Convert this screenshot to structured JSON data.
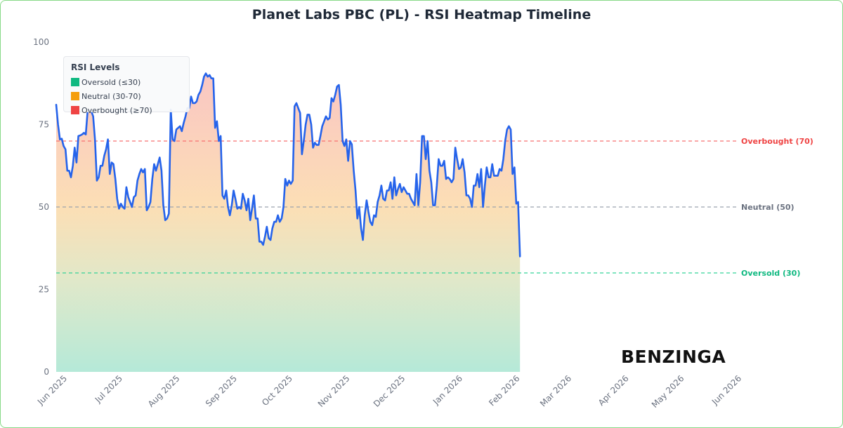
{
  "title": "Planet Labs PBC (PL) - RSI Heatmap Timeline",
  "brand": "BENZINGA",
  "colors": {
    "line": "#2563eb",
    "oversold": "#10b981",
    "neutral": "#f59e0b",
    "overbought": "#ef4444",
    "neutral_line": "#9ca3af"
  },
  "legend": {
    "title": "RSI Levels",
    "items": [
      {
        "label": "Oversold (≤30)",
        "color": "#10b981"
      },
      {
        "label": "Neutral (30-70)",
        "color": "#f59e0b"
      },
      {
        "label": "Overbought (≥70)",
        "color": "#ef4444"
      }
    ]
  },
  "reference_lines": [
    {
      "value": 70,
      "label": "Overbought (70)",
      "color": "#ef4444"
    },
    {
      "value": 50,
      "label": "Neutral (50)",
      "color": "#6b7280"
    },
    {
      "value": 30,
      "label": "Oversold (30)",
      "color": "#10b981"
    }
  ],
  "chart_data": {
    "type": "area",
    "title": "Planet Labs PBC (PL) - RSI Heatmap Timeline",
    "xlabel": "",
    "ylabel": "",
    "ylim": [
      0,
      100
    ],
    "yticks": [
      0,
      25,
      50,
      75,
      100
    ],
    "xlim": [
      "2025-06-01",
      "2026-06-01"
    ],
    "xticks": [
      {
        "date": "2025-06-01",
        "label": "Jun 2025"
      },
      {
        "date": "2025-07-01",
        "label": "Jul 2025"
      },
      {
        "date": "2025-08-01",
        "label": "Aug 2025"
      },
      {
        "date": "2025-09-01",
        "label": "Sep 2025"
      },
      {
        "date": "2025-10-01",
        "label": "Oct 2025"
      },
      {
        "date": "2025-11-01",
        "label": "Nov 2025"
      },
      {
        "date": "2025-12-01",
        "label": "Dec 2025"
      },
      {
        "date": "2026-01-01",
        "label": "Jan 2026"
      },
      {
        "date": "2026-02-01",
        "label": "Feb 2026"
      },
      {
        "date": "2026-03-01",
        "label": "Mar 2026"
      },
      {
        "date": "2026-04-01",
        "label": "Apr 2026"
      },
      {
        "date": "2026-05-01",
        "label": "May 2026"
      },
      {
        "date": "2026-06-01",
        "label": "Jun 2026"
      }
    ],
    "grid": false,
    "legend_position": "top-left",
    "series": [
      {
        "values": [
          [
            "2025-06-01",
            81
          ],
          [
            "2025-06-02",
            75
          ],
          [
            "2025-06-03",
            70.5
          ],
          [
            "2025-06-04",
            70.7
          ],
          [
            "2025-06-05",
            68.5
          ],
          [
            "2025-06-06",
            67.5
          ],
          [
            "2025-06-07",
            61
          ],
          [
            "2025-06-08",
            61
          ],
          [
            "2025-06-09",
            59
          ],
          [
            "2025-06-10",
            62.5
          ],
          [
            "2025-06-11",
            68
          ],
          [
            "2025-06-12",
            63.5
          ],
          [
            "2025-06-13",
            71.5
          ],
          [
            "2025-06-14",
            71.7
          ],
          [
            "2025-06-15",
            72
          ],
          [
            "2025-06-16",
            72.5
          ],
          [
            "2025-06-17",
            72
          ],
          [
            "2025-06-18",
            79
          ],
          [
            "2025-06-19",
            79
          ],
          [
            "2025-06-20",
            79
          ],
          [
            "2025-06-21",
            77.5
          ],
          [
            "2025-06-22",
            70.5
          ],
          [
            "2025-06-23",
            58
          ],
          [
            "2025-06-24",
            59
          ],
          [
            "2025-06-25",
            62.5
          ],
          [
            "2025-06-26",
            62.5
          ],
          [
            "2025-06-27",
            65.5
          ],
          [
            "2025-06-28",
            67.5
          ],
          [
            "2025-06-29",
            70.5
          ],
          [
            "2025-06-30",
            60
          ],
          [
            "2025-07-01",
            63.5
          ],
          [
            "2025-07-02",
            63
          ],
          [
            "2025-07-03",
            58.5
          ],
          [
            "2025-07-04",
            52.5
          ],
          [
            "2025-07-05",
            49.5
          ],
          [
            "2025-07-06",
            51
          ],
          [
            "2025-07-07",
            50
          ],
          [
            "2025-07-08",
            49.5
          ],
          [
            "2025-07-09",
            56
          ],
          [
            "2025-07-10",
            53
          ],
          [
            "2025-07-11",
            51.5
          ],
          [
            "2025-07-12",
            50
          ],
          [
            "2025-07-13",
            53
          ],
          [
            "2025-07-14",
            53.5
          ],
          [
            "2025-07-15",
            58
          ],
          [
            "2025-07-16",
            60
          ],
          [
            "2025-07-17",
            61.5
          ],
          [
            "2025-07-18",
            60.5
          ],
          [
            "2025-07-19",
            61.5
          ],
          [
            "2025-07-20",
            49
          ],
          [
            "2025-07-21",
            50
          ],
          [
            "2025-07-22",
            51.5
          ],
          [
            "2025-07-23",
            58.5
          ],
          [
            "2025-07-24",
            63
          ],
          [
            "2025-07-25",
            61
          ],
          [
            "2025-07-26",
            63
          ],
          [
            "2025-07-27",
            65
          ],
          [
            "2025-07-28",
            61
          ],
          [
            "2025-07-29",
            50.5
          ],
          [
            "2025-07-30",
            46
          ],
          [
            "2025-07-31",
            46.5
          ],
          [
            "2025-08-01",
            48
          ],
          [
            "2025-08-02",
            79.5
          ],
          [
            "2025-08-03",
            70.5
          ],
          [
            "2025-08-04",
            70
          ],
          [
            "2025-08-05",
            73.5
          ],
          [
            "2025-08-06",
            74
          ],
          [
            "2025-08-07",
            74.5
          ],
          [
            "2025-08-08",
            73
          ],
          [
            "2025-08-09",
            75.5
          ],
          [
            "2025-08-10",
            77.5
          ],
          [
            "2025-08-11",
            80
          ],
          [
            "2025-08-12",
            80
          ],
          [
            "2025-08-13",
            83.5
          ],
          [
            "2025-08-14",
            81.5
          ],
          [
            "2025-08-15",
            81.5
          ],
          [
            "2025-08-16",
            82
          ],
          [
            "2025-08-17",
            84
          ],
          [
            "2025-08-18",
            85
          ],
          [
            "2025-08-19",
            87
          ],
          [
            "2025-08-20",
            89.5
          ],
          [
            "2025-08-21",
            90.5
          ],
          [
            "2025-08-22",
            89.5
          ],
          [
            "2025-08-23",
            90
          ],
          [
            "2025-08-24",
            89
          ],
          [
            "2025-08-25",
            89
          ],
          [
            "2025-08-26",
            74
          ],
          [
            "2025-08-27",
            76
          ],
          [
            "2025-08-28",
            70
          ],
          [
            "2025-08-29",
            71.5
          ],
          [
            "2025-08-30",
            53.5
          ],
          [
            "2025-08-31",
            52.5
          ],
          [
            "2025-09-01",
            55
          ],
          [
            "2025-09-02",
            50
          ],
          [
            "2025-09-03",
            47.5
          ],
          [
            "2025-09-04",
            50.5
          ],
          [
            "2025-09-05",
            55
          ],
          [
            "2025-09-06",
            52.5
          ],
          [
            "2025-09-07",
            49.5
          ],
          [
            "2025-09-08",
            50
          ],
          [
            "2025-09-09",
            49.5
          ],
          [
            "2025-09-10",
            54
          ],
          [
            "2025-09-11",
            52
          ],
          [
            "2025-09-12",
            49
          ],
          [
            "2025-09-13",
            52.5
          ],
          [
            "2025-09-14",
            46
          ],
          [
            "2025-09-15",
            49.5
          ],
          [
            "2025-09-16",
            53.5
          ],
          [
            "2025-09-17",
            46.5
          ],
          [
            "2025-09-18",
            46.5
          ],
          [
            "2025-09-19",
            39.5
          ],
          [
            "2025-09-20",
            39.5
          ],
          [
            "2025-09-21",
            38.5
          ],
          [
            "2025-09-22",
            41
          ],
          [
            "2025-09-23",
            44
          ],
          [
            "2025-09-24",
            40.5
          ],
          [
            "2025-09-25",
            40
          ],
          [
            "2025-09-26",
            43.5
          ],
          [
            "2025-09-27",
            45.5
          ],
          [
            "2025-09-28",
            45.5
          ],
          [
            "2025-09-29",
            47.5
          ],
          [
            "2025-09-30",
            45.5
          ],
          [
            "2025-10-01",
            46.5
          ],
          [
            "2025-10-02",
            50
          ],
          [
            "2025-10-03",
            58.5
          ],
          [
            "2025-10-04",
            56.5
          ],
          [
            "2025-10-05",
            58
          ],
          [
            "2025-10-06",
            57
          ],
          [
            "2025-10-07",
            58
          ],
          [
            "2025-10-08",
            80.5
          ],
          [
            "2025-10-09",
            81.5
          ],
          [
            "2025-10-10",
            80
          ],
          [
            "2025-10-11",
            78.5
          ],
          [
            "2025-10-12",
            66
          ],
          [
            "2025-10-13",
            70
          ],
          [
            "2025-10-14",
            75
          ],
          [
            "2025-10-15",
            78
          ],
          [
            "2025-10-16",
            78
          ],
          [
            "2025-10-17",
            75
          ],
          [
            "2025-10-18",
            68
          ],
          [
            "2025-10-19",
            69.5
          ],
          [
            "2025-10-20",
            68.8
          ],
          [
            "2025-10-21",
            68.8
          ],
          [
            "2025-10-22",
            71.5
          ],
          [
            "2025-10-23",
            74.5
          ],
          [
            "2025-10-24",
            76
          ],
          [
            "2025-10-25",
            77.5
          ],
          [
            "2025-10-26",
            76.5
          ],
          [
            "2025-10-27",
            77
          ],
          [
            "2025-10-28",
            83
          ],
          [
            "2025-10-29",
            82
          ],
          [
            "2025-10-30",
            84
          ],
          [
            "2025-10-31",
            86.5
          ],
          [
            "2025-11-01",
            87
          ],
          [
            "2025-11-02",
            81
          ],
          [
            "2025-11-03",
            70
          ],
          [
            "2025-11-04",
            68.5
          ],
          [
            "2025-11-05",
            70.5
          ],
          [
            "2025-11-06",
            64
          ],
          [
            "2025-11-07",
            70
          ],
          [
            "2025-11-08",
            69
          ],
          [
            "2025-11-09",
            61
          ],
          [
            "2025-11-10",
            55
          ],
          [
            "2025-11-11",
            46.5
          ],
          [
            "2025-11-12",
            50
          ],
          [
            "2025-11-13",
            43.5
          ],
          [
            "2025-11-14",
            40
          ],
          [
            "2025-11-15",
            47.5
          ],
          [
            "2025-11-16",
            52
          ],
          [
            "2025-11-17",
            48.5
          ],
          [
            "2025-11-18",
            45.5
          ],
          [
            "2025-11-19",
            44.5
          ],
          [
            "2025-11-20",
            47.5
          ],
          [
            "2025-11-21",
            47
          ],
          [
            "2025-11-22",
            51.5
          ],
          [
            "2025-11-23",
            53.5
          ],
          [
            "2025-11-24",
            56.5
          ],
          [
            "2025-11-25",
            52.5
          ],
          [
            "2025-11-26",
            52
          ],
          [
            "2025-11-27",
            55
          ],
          [
            "2025-11-28",
            55
          ],
          [
            "2025-11-29",
            57.5
          ],
          [
            "2025-11-30",
            52.5
          ],
          [
            "2025-12-01",
            59
          ],
          [
            "2025-12-02",
            53.5
          ],
          [
            "2025-12-03",
            55.5
          ],
          [
            "2025-12-04",
            57
          ],
          [
            "2025-12-05",
            54.5
          ],
          [
            "2025-12-06",
            56
          ],
          [
            "2025-12-07",
            55
          ],
          [
            "2025-12-08",
            54
          ],
          [
            "2025-12-09",
            54
          ],
          [
            "2025-12-10",
            52.5
          ],
          [
            "2025-12-11",
            51.5
          ],
          [
            "2025-12-12",
            50.5
          ],
          [
            "2025-12-13",
            60
          ],
          [
            "2025-12-14",
            50.5
          ],
          [
            "2025-12-15",
            57.5
          ],
          [
            "2025-12-16",
            71.5
          ],
          [
            "2025-12-17",
            71.5
          ],
          [
            "2025-12-18",
            64.5
          ],
          [
            "2025-12-19",
            70
          ],
          [
            "2025-12-20",
            61
          ],
          [
            "2025-12-21",
            57.5
          ],
          [
            "2025-12-22",
            50.5
          ],
          [
            "2025-12-23",
            50.5
          ],
          [
            "2025-12-24",
            56.5
          ],
          [
            "2025-12-25",
            64.5
          ],
          [
            "2025-12-26",
            62.5
          ],
          [
            "2025-12-27",
            62.5
          ],
          [
            "2025-12-28",
            64
          ],
          [
            "2025-12-29",
            58.5
          ],
          [
            "2025-12-30",
            59
          ],
          [
            "2025-12-31",
            58.5
          ],
          [
            "2026-01-01",
            57.5
          ],
          [
            "2026-01-02",
            58.5
          ],
          [
            "2026-01-03",
            68
          ],
          [
            "2026-01-04",
            64.5
          ],
          [
            "2026-01-05",
            61.5
          ],
          [
            "2026-01-06",
            62
          ],
          [
            "2026-01-07",
            64.5
          ],
          [
            "2026-01-08",
            60.5
          ],
          [
            "2026-01-09",
            53.5
          ],
          [
            "2026-01-10",
            53.5
          ],
          [
            "2026-01-11",
            52.5
          ],
          [
            "2026-01-12",
            50
          ],
          [
            "2026-01-13",
            56.5
          ],
          [
            "2026-01-14",
            56.5
          ],
          [
            "2026-01-15",
            60
          ],
          [
            "2026-01-16",
            56
          ],
          [
            "2026-01-17",
            61.5
          ],
          [
            "2026-01-18",
            50
          ],
          [
            "2026-01-19",
            56.5
          ],
          [
            "2026-01-20",
            62
          ],
          [
            "2026-01-21",
            59
          ],
          [
            "2026-01-22",
            59
          ],
          [
            "2026-01-23",
            63
          ],
          [
            "2026-01-24",
            59.5
          ],
          [
            "2026-01-25",
            59.5
          ],
          [
            "2026-01-26",
            59.5
          ],
          [
            "2026-01-27",
            61.5
          ],
          [
            "2026-01-28",
            61
          ],
          [
            "2026-01-29",
            64.5
          ],
          [
            "2026-01-30",
            70
          ],
          [
            "2026-01-31",
            73.5
          ],
          [
            "2026-02-01",
            74.5
          ],
          [
            "2026-02-02",
            73.5
          ],
          [
            "2026-02-03",
            60
          ],
          [
            "2026-02-04",
            62
          ],
          [
            "2026-02-05",
            51
          ],
          [
            "2026-02-06",
            51.5
          ],
          [
            "2026-02-07",
            35
          ]
        ]
      }
    ]
  }
}
